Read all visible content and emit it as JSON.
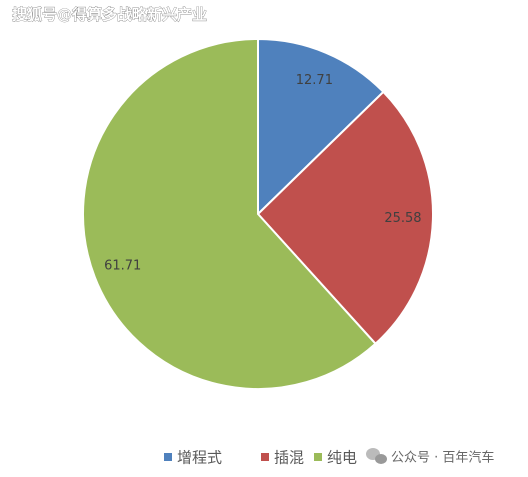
{
  "watermarks": [
    "搜狐号@得算多战略新兴产业",
    "公众号 · 百年汽车"
  ],
  "chart_data": {
    "type": "pie",
    "categories": [
      "增程式",
      "插混",
      "纯电"
    ],
    "values": [
      12.71,
      25.58,
      61.71
    ],
    "colors": [
      "#4f81bd",
      "#c0504d",
      "#9bbb59"
    ],
    "legend": "bottom"
  }
}
